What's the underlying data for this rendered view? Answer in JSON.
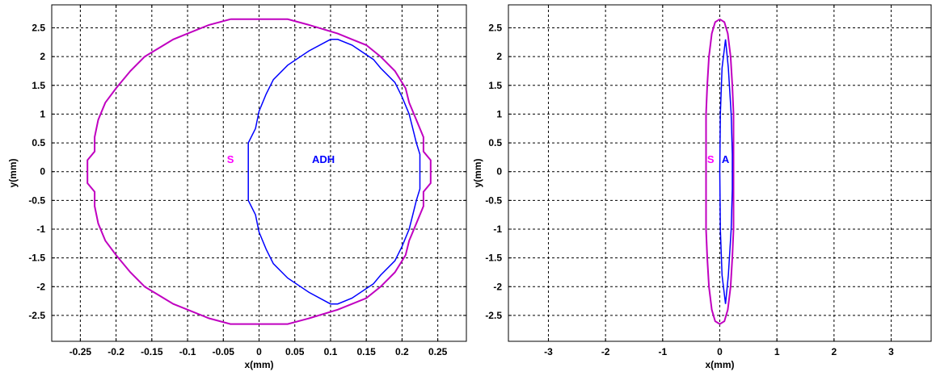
{
  "chart_data": [
    {
      "type": "line",
      "xlabel": "x(mm)",
      "ylabel": "y(mm)",
      "xlim": [
        -0.29,
        0.29
      ],
      "ylim": [
        -2.95,
        2.9
      ],
      "xticks": [
        -0.25,
        -0.2,
        -0.15,
        -0.1,
        -0.05,
        0,
        0.05,
        0.1,
        0.15,
        0.2,
        0.25
      ],
      "xtick_labels": [
        "-0.25",
        "-0.2",
        "-0.15",
        "-0.1",
        "-0.05",
        "0",
        "0.05",
        "0.1",
        "0.15",
        "0.2",
        "0.25"
      ],
      "yticks": [
        2.5,
        2,
        1.5,
        1,
        0.5,
        0,
        -0.5,
        -1,
        -1.5,
        -2,
        -2.5
      ],
      "ytick_labels": [
        "2.5",
        "2",
        "1.5",
        "1",
        "0.5",
        "0",
        "-0.5",
        "-1",
        "-1.5",
        "-2",
        "-2.5"
      ],
      "grid": true,
      "series": [
        {
          "color": "#c000c0",
          "points": [
            [
              -0.04,
              2.65
            ],
            [
              0.04,
              2.65
            ],
            [
              0.07,
              2.55
            ],
            [
              0.11,
              2.4
            ],
            [
              0.13,
              2.3
            ],
            [
              0.15,
              2.2
            ],
            [
              0.17,
              2.0
            ],
            [
              0.19,
              1.75
            ],
            [
              0.205,
              1.45
            ],
            [
              0.21,
              1.2
            ],
            [
              0.22,
              0.9
            ],
            [
              0.23,
              0.6
            ],
            [
              0.23,
              0.35
            ],
            [
              0.24,
              0.2
            ],
            [
              0.24,
              -0.2
            ],
            [
              0.23,
              -0.35
            ],
            [
              0.23,
              -0.6
            ],
            [
              0.22,
              -0.9
            ],
            [
              0.21,
              -1.2
            ],
            [
              0.205,
              -1.45
            ],
            [
              0.19,
              -1.75
            ],
            [
              0.17,
              -2.0
            ],
            [
              0.15,
              -2.2
            ],
            [
              0.13,
              -2.3
            ],
            [
              0.11,
              -2.4
            ],
            [
              0.07,
              -2.55
            ],
            [
              0.04,
              -2.65
            ],
            [
              -0.04,
              -2.65
            ],
            [
              -0.07,
              -2.55
            ],
            [
              -0.1,
              -2.4
            ],
            [
              -0.12,
              -2.3
            ],
            [
              -0.14,
              -2.15
            ],
            [
              -0.16,
              -2.0
            ],
            [
              -0.18,
              -1.75
            ],
            [
              -0.2,
              -1.45
            ],
            [
              -0.215,
              -1.2
            ],
            [
              -0.225,
              -0.9
            ],
            [
              -0.23,
              -0.6
            ],
            [
              -0.23,
              -0.35
            ],
            [
              -0.24,
              -0.2
            ],
            [
              -0.24,
              0.2
            ],
            [
              -0.23,
              0.35
            ],
            [
              -0.23,
              0.6
            ],
            [
              -0.225,
              0.9
            ],
            [
              -0.215,
              1.2
            ],
            [
              -0.2,
              1.45
            ],
            [
              -0.18,
              1.75
            ],
            [
              -0.16,
              2.0
            ],
            [
              -0.14,
              2.15
            ],
            [
              -0.12,
              2.3
            ],
            [
              -0.1,
              2.4
            ],
            [
              -0.07,
              2.55
            ],
            [
              -0.04,
              2.65
            ]
          ]
        },
        {
          "color": "#0000ff",
          "points": [
            [
              0.1,
              2.3
            ],
            [
              0.11,
              2.3
            ],
            [
              0.13,
              2.2
            ],
            [
              0.16,
              1.95
            ],
            [
              0.17,
              1.8
            ],
            [
              0.19,
              1.55
            ],
            [
              0.2,
              1.3
            ],
            [
              0.21,
              1.0
            ],
            [
              0.215,
              0.75
            ],
            [
              0.22,
              0.5
            ],
            [
              0.225,
              0.3
            ],
            [
              0.225,
              -0.3
            ],
            [
              0.22,
              -0.5
            ],
            [
              0.215,
              -0.75
            ],
            [
              0.21,
              -1.0
            ],
            [
              0.2,
              -1.3
            ],
            [
              0.19,
              -1.55
            ],
            [
              0.17,
              -1.8
            ],
            [
              0.16,
              -1.95
            ],
            [
              0.13,
              -2.2
            ],
            [
              0.11,
              -2.3
            ],
            [
              0.1,
              -2.3
            ],
            [
              0.07,
              -2.1
            ],
            [
              0.04,
              -1.85
            ],
            [
              0.02,
              -1.6
            ],
            [
              0.01,
              -1.35
            ],
            [
              0.0,
              -1.05
            ],
            [
              -0.005,
              -0.75
            ],
            [
              -0.015,
              -0.5
            ],
            [
              -0.015,
              0.5
            ],
            [
              -0.005,
              0.75
            ],
            [
              0.0,
              1.05
            ],
            [
              0.01,
              1.35
            ],
            [
              0.02,
              1.6
            ],
            [
              0.04,
              1.85
            ],
            [
              0.07,
              2.1
            ],
            [
              0.1,
              2.3
            ]
          ]
        }
      ],
      "annotations": [
        {
          "text": "S",
          "x": -0.04,
          "y": 0.15,
          "color": "#ff00ff"
        },
        {
          "text": "ADH",
          "x": 0.09,
          "y": 0.15,
          "color": "#0000ff"
        }
      ]
    },
    {
      "type": "line",
      "xlabel": "x(mm)",
      "ylabel": "y(mm)",
      "xlim": [
        -3.7,
        3.7
      ],
      "ylim": [
        -2.95,
        2.9
      ],
      "xticks": [
        -3,
        -2,
        -1,
        0,
        1,
        2,
        3
      ],
      "xtick_labels": [
        "-3",
        "-2",
        "-1",
        "0",
        "1",
        "2",
        "3"
      ],
      "yticks": [
        2.5,
        2,
        1.5,
        1,
        0.5,
        0,
        -0.5,
        -1,
        -1.5,
        -2,
        -2.5
      ],
      "ytick_labels": [
        "2.5",
        "2",
        "1.5",
        "1",
        "0.5",
        "0",
        "-0.5",
        "-1",
        "-1.5",
        "-2",
        "-2.5"
      ],
      "grid": true,
      "series": [
        {
          "color": "#c000c0",
          "points": [
            [
              0.0,
              2.65
            ],
            [
              0.08,
              2.6
            ],
            [
              0.14,
              2.4
            ],
            [
              0.19,
              2.0
            ],
            [
              0.22,
              1.5
            ],
            [
              0.24,
              1.0
            ],
            [
              0.24,
              -1.0
            ],
            [
              0.22,
              -1.5
            ],
            [
              0.19,
              -2.0
            ],
            [
              0.14,
              -2.4
            ],
            [
              0.08,
              -2.6
            ],
            [
              0.0,
              -2.65
            ],
            [
              -0.08,
              -2.6
            ],
            [
              -0.14,
              -2.4
            ],
            [
              -0.19,
              -2.0
            ],
            [
              -0.22,
              -1.5
            ],
            [
              -0.24,
              -1.0
            ],
            [
              -0.24,
              1.0
            ],
            [
              -0.22,
              1.5
            ],
            [
              -0.19,
              2.0
            ],
            [
              -0.14,
              2.4
            ],
            [
              -0.08,
              2.6
            ],
            [
              0.0,
              2.65
            ]
          ]
        },
        {
          "color": "#0000ff",
          "points": [
            [
              0.1,
              2.3
            ],
            [
              0.15,
              1.8
            ],
            [
              0.2,
              1.0
            ],
            [
              0.22,
              0.3
            ],
            [
              0.22,
              -0.3
            ],
            [
              0.2,
              -1.0
            ],
            [
              0.15,
              -1.8
            ],
            [
              0.1,
              -2.3
            ],
            [
              0.04,
              -1.8
            ],
            [
              0.01,
              -1.0
            ],
            [
              0.0,
              0.0
            ],
            [
              0.01,
              1.0
            ],
            [
              0.04,
              1.8
            ],
            [
              0.1,
              2.3
            ]
          ]
        }
      ],
      "annotations": [
        {
          "text": "S",
          "x": -0.16,
          "y": 0.15,
          "color": "#ff00ff"
        },
        {
          "text": "A",
          "x": 0.1,
          "y": 0.15,
          "color": "#0000ff"
        }
      ]
    }
  ]
}
